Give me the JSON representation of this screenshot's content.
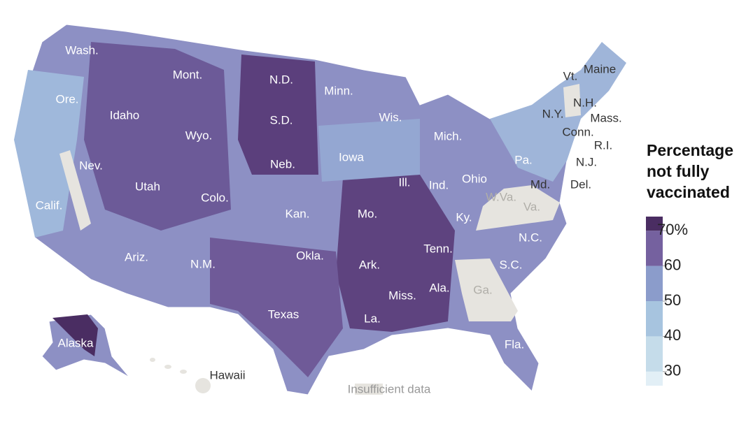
{
  "map": {
    "labels": [
      "Wash.",
      "Ore.",
      "Calif.",
      "Nev.",
      "Idaho",
      "Mont.",
      "Wyo.",
      "Utah",
      "Colo.",
      "Ariz.",
      "N.M.",
      "N.D.",
      "S.D.",
      "Neb.",
      "Kan.",
      "Okla.",
      "Texas",
      "Minn.",
      "Iowa",
      "Mo.",
      "Ark.",
      "La.",
      "Wis.",
      "Ill.",
      "Miss.",
      "Ind.",
      "Mich.",
      "Ohio",
      "Ky.",
      "Tenn.",
      "Ala.",
      "Ga.",
      "Fla.",
      "S.C.",
      "N.C.",
      "W.Va.",
      "Va.",
      "Pa.",
      "Md.",
      "Del.",
      "N.J.",
      "R.I.",
      "Conn.",
      "Mass.",
      "N.H.",
      "N.Y.",
      "Vt.",
      "Maine",
      "Alaska",
      "Hawaii"
    ]
  },
  "legend": {
    "title": "Percentage not fully vaccinated",
    "range": [
      26,
      74
    ],
    "ticks": [
      30,
      40,
      50,
      60,
      {
        "value": 70,
        "label": "70%"
      }
    ],
    "colors": [
      "#e2eff6",
      "#c5dcea",
      "#a7c4df",
      "#8b9ccb",
      "#75619f",
      "#4a2d62"
    ],
    "missing_label": "Insufficient data",
    "missing_color": "#e6e4df"
  }
}
